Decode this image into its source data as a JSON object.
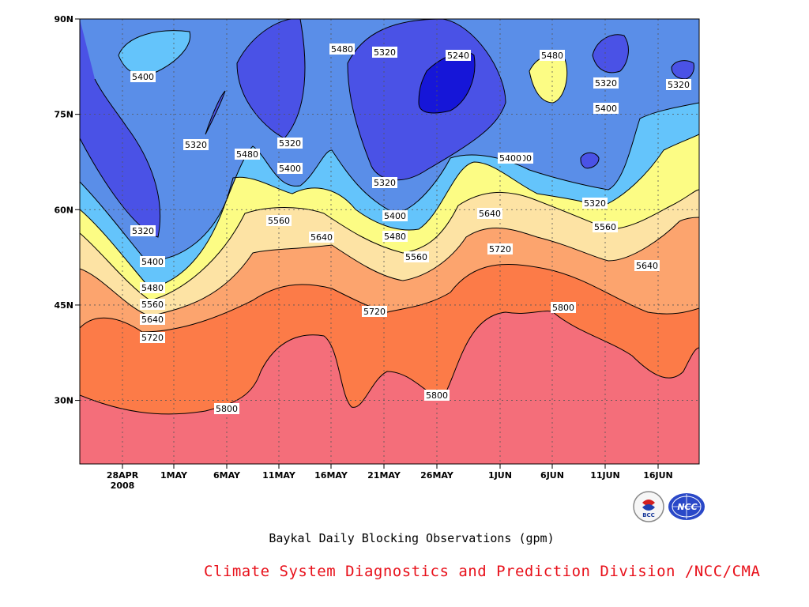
{
  "chart_data": {
    "type": "contour",
    "title": "Baykal Daily Blocking Observations (gpm)",
    "credit": "Climate System Diagnostics and Prediction Division /NCC/CMA",
    "x_tick_labels": [
      "28APR",
      "1MAY",
      "6MAY",
      "11MAY",
      "16MAY",
      "21MAY",
      "26MAY",
      "1JUN",
      "6JUN",
      "11JUN",
      "16JUN"
    ],
    "x_year_label": "2008",
    "y_tick_labels": [
      "90N",
      "75N",
      "60N",
      "45N",
      "30N"
    ],
    "y_ticks": [
      90,
      75,
      60,
      45,
      30
    ],
    "ylim": [
      20,
      90
    ],
    "grid": true,
    "contour_levels": [
      5240,
      5320,
      5400,
      5480,
      5560,
      5640,
      5720,
      5800
    ],
    "fill_colors": {
      "5240": "#1616d8",
      "5320": "#4a52e6",
      "5400": "#5a8ee8",
      "5480": "#64c4fb",
      "5560": "#fcfc84",
      "5640": "#fde3a4",
      "5720": "#fca46e",
      "5800": "#fc7b48",
      "max": "#f46e7a"
    },
    "contour_labels": [
      "5400",
      "5320",
      "5240",
      "5480",
      "5320",
      "5320",
      "5400",
      "5320",
      "5400",
      "5320",
      "5480",
      "5320",
      "5400",
      "5400",
      "5400",
      "5320",
      "5480",
      "5560",
      "5640",
      "5640",
      "5480",
      "5560",
      "5560",
      "5320",
      "5400",
      "5480",
      "5560",
      "5640",
      "5720",
      "5720",
      "5720",
      "5800",
      "5800",
      "5800",
      "5640"
    ]
  },
  "logos": {
    "bcc_label": "BCC",
    "ncc_label": "NCC"
  }
}
